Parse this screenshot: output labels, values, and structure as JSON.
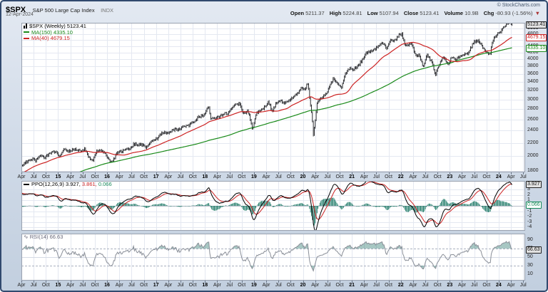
{
  "header": {
    "symbol": "$SPX",
    "name": "S&P 500 Large Cap Index",
    "exchange": "INDX",
    "date": "12-Apr-2024",
    "credit": "© StockCharts.com",
    "quote": {
      "open_label": "Open",
      "open": "5211.37",
      "high_label": "High",
      "high": "5224.81",
      "low_label": "Low",
      "low": "5107.94",
      "close_label": "Close",
      "close": "5123.41",
      "volume_label": "Volume",
      "volume": "10.9B",
      "chg_label": "Chg",
      "chg": "-80.93 (-1.56%)",
      "chg_dir": "▼"
    }
  },
  "legends": {
    "price_main": "$SPX (Weekly) 5123.41",
    "price_ma150": "MA(150) 4335.10",
    "price_ma40": "MA(40) 4679.15",
    "ppo_1": "PPO(12,26,9) 3.927,",
    "ppo_2": "3.861,",
    "ppo_3": "0.066",
    "rsi": "RSI(14) 66.63"
  },
  "colors": {
    "bars": "#15161a",
    "ma150": "#1a8a1a",
    "ma40": "#cc2222",
    "ppo_line": "#000000",
    "ppo_signal": "#cc2222",
    "ppo_hist": "#1f7a68",
    "rsi_line": "#8a8f98",
    "rsi_fill": "rgba(35,115,105,0.40)",
    "grid": "#e4e8f1",
    "panel_border": "#9aa2b0",
    "panel_bg": "#ffffff"
  },
  "axis": {
    "price_labels": [
      5000,
      4800,
      4600,
      4400,
      4200,
      4000,
      3800,
      3600,
      3400,
      3200,
      3000,
      2800,
      2600,
      2400,
      2200,
      2000,
      1800
    ],
    "price_boxes": [
      {
        "text": "5123.41",
        "value": 5123.41,
        "style": "last"
      },
      {
        "text": "4679.15",
        "value": 4679.15,
        "style": "ma40"
      },
      {
        "text": "4335.10",
        "value": 4335.1,
        "style": "ma150"
      }
    ],
    "ppo_labels": [
      3,
      2,
      1,
      0,
      -1,
      -2,
      -3,
      -4
    ],
    "ppo_boxes": [
      {
        "text": "3.927",
        "value": 3.927,
        "style": "last"
      },
      {
        "text": "0.066",
        "value": 0.066,
        "style": "hist"
      }
    ],
    "rsi_labels": [
      90,
      70,
      50,
      30,
      10
    ],
    "rsi_boxes": [
      {
        "text": "66.63",
        "value": 66.63,
        "style": "last"
      }
    ]
  },
  "x_ticks": [
    {
      "t": 2014.25,
      "l": "Apr"
    },
    {
      "t": 2014.5,
      "l": "Jul"
    },
    {
      "t": 2014.75,
      "l": "Oct"
    },
    {
      "t": 2015,
      "l": "15",
      "y": true
    },
    {
      "t": 2015.25,
      "l": "Apr"
    },
    {
      "t": 2015.5,
      "l": "Jul"
    },
    {
      "t": 2015.75,
      "l": "Oct"
    },
    {
      "t": 2016,
      "l": "16",
      "y": true
    },
    {
      "t": 2016.25,
      "l": "Apr"
    },
    {
      "t": 2016.5,
      "l": "Jul"
    },
    {
      "t": 2016.75,
      "l": "Oct"
    },
    {
      "t": 2017,
      "l": "17",
      "y": true
    },
    {
      "t": 2017.25,
      "l": "Apr"
    },
    {
      "t": 2017.5,
      "l": "Jul"
    },
    {
      "t": 2017.75,
      "l": "Oct"
    },
    {
      "t": 2018,
      "l": "18",
      "y": true
    },
    {
      "t": 2018.25,
      "l": "Apr"
    },
    {
      "t": 2018.5,
      "l": "Jul"
    },
    {
      "t": 2018.75,
      "l": "Oct"
    },
    {
      "t": 2019,
      "l": "19",
      "y": true
    },
    {
      "t": 2019.25,
      "l": "Apr"
    },
    {
      "t": 2019.5,
      "l": "Jul"
    },
    {
      "t": 2019.75,
      "l": "Oct"
    },
    {
      "t": 2020,
      "l": "20",
      "y": true
    },
    {
      "t": 2020.25,
      "l": "Apr"
    },
    {
      "t": 2020.5,
      "l": "Jul"
    },
    {
      "t": 2020.75,
      "l": "Oct"
    },
    {
      "t": 2021,
      "l": "21",
      "y": true
    },
    {
      "t": 2021.25,
      "l": "Apr"
    },
    {
      "t": 2021.5,
      "l": "Jul"
    },
    {
      "t": 2021.75,
      "l": "Oct"
    },
    {
      "t": 2022,
      "l": "22",
      "y": true
    },
    {
      "t": 2022.25,
      "l": "Apr"
    },
    {
      "t": 2022.5,
      "l": "Jul"
    },
    {
      "t": 2022.75,
      "l": "Oct"
    },
    {
      "t": 2023,
      "l": "23",
      "y": true
    },
    {
      "t": 2023.25,
      "l": "Apr"
    },
    {
      "t": 2023.5,
      "l": "Jul"
    },
    {
      "t": 2023.75,
      "l": "Oct"
    },
    {
      "t": 2024,
      "l": "24",
      "y": true
    },
    {
      "t": 2024.25,
      "l": "Apr"
    },
    {
      "t": 2024.5,
      "l": "Jul"
    }
  ],
  "chart_data": {
    "type": "ohlc",
    "title": "$SPX weekly with MA(150), MA(40), PPO(12,26,9), RSI(14)",
    "timeframe": "weekly",
    "x_domain": [
      2014.25,
      2024.54
    ],
    "price_panel": {
      "scale": "log",
      "range": [
        1780,
        5200
      ],
      "gridline_step": 200,
      "last_close": 5123.41,
      "overlays": [
        {
          "name": "MA(150)",
          "period": 150,
          "last": 4335.1
        },
        {
          "name": "MA(40)",
          "period": 40,
          "last": 4679.15
        }
      ],
      "close_anchors": [
        [
          2011.29,
          1364
        ],
        [
          2011.375,
          1345
        ],
        [
          2011.46,
          1321
        ],
        [
          2011.54,
          1292
        ],
        [
          2011.625,
          1219
        ],
        [
          2011.71,
          1131
        ],
        [
          2011.79,
          1253
        ],
        [
          2011.875,
          1247
        ],
        [
          2011.96,
          1258
        ],
        [
          2012.04,
          1312
        ],
        [
          2012.125,
          1366
        ],
        [
          2012.21,
          1408
        ],
        [
          2012.29,
          1398
        ],
        [
          2012.375,
          1310
        ],
        [
          2012.46,
          1362
        ],
        [
          2012.54,
          1379
        ],
        [
          2012.625,
          1407
        ],
        [
          2012.71,
          1441
        ],
        [
          2012.79,
          1412
        ],
        [
          2012.875,
          1416
        ],
        [
          2012.96,
          1426
        ],
        [
          2013.04,
          1498
        ],
        [
          2013.125,
          1515
        ],
        [
          2013.21,
          1569
        ],
        [
          2013.29,
          1598
        ],
        [
          2013.375,
          1631
        ],
        [
          2013.46,
          1606
        ],
        [
          2013.54,
          1686
        ],
        [
          2013.625,
          1633
        ],
        [
          2013.71,
          1682
        ],
        [
          2013.79,
          1757
        ],
        [
          2013.875,
          1806
        ],
        [
          2013.96,
          1848
        ],
        [
          2014.04,
          1783
        ],
        [
          2014.125,
          1859
        ],
        [
          2014.21,
          1872
        ],
        [
          2014.29,
          1884
        ],
        [
          2014.375,
          1924
        ],
        [
          2014.46,
          1960
        ],
        [
          2014.54,
          1931
        ],
        [
          2014.625,
          2003
        ],
        [
          2014.71,
          1972
        ],
        [
          2014.79,
          2018
        ],
        [
          2014.875,
          2068
        ],
        [
          2014.96,
          2059
        ],
        [
          2015.04,
          1995
        ],
        [
          2015.125,
          2105
        ],
        [
          2015.21,
          2068
        ],
        [
          2015.29,
          2086
        ],
        [
          2015.375,
          2107
        ],
        [
          2015.46,
          2063
        ],
        [
          2015.54,
          2104
        ],
        [
          2015.625,
          1972
        ],
        [
          2015.71,
          1920
        ],
        [
          2015.79,
          2079
        ],
        [
          2015.875,
          2080
        ],
        [
          2015.96,
          2044
        ],
        [
          2016.04,
          1940
        ],
        [
          2016.125,
          1932
        ],
        [
          2016.21,
          2060
        ],
        [
          2016.29,
          2065
        ],
        [
          2016.375,
          2097
        ],
        [
          2016.46,
          2099
        ],
        [
          2016.54,
          2174
        ],
        [
          2016.625,
          2171
        ],
        [
          2016.71,
          2168
        ],
        [
          2016.79,
          2126
        ],
        [
          2016.875,
          2199
        ],
        [
          2016.96,
          2239
        ],
        [
          2017.04,
          2279
        ],
        [
          2017.125,
          2364
        ],
        [
          2017.21,
          2363
        ],
        [
          2017.29,
          2384
        ],
        [
          2017.375,
          2412
        ],
        [
          2017.46,
          2423
        ],
        [
          2017.54,
          2470
        ],
        [
          2017.625,
          2472
        ],
        [
          2017.71,
          2519
        ],
        [
          2017.79,
          2575
        ],
        [
          2017.875,
          2648
        ],
        [
          2017.96,
          2674
        ],
        [
          2018.02,
          2750
        ],
        [
          2018.07,
          2873
        ],
        [
          2018.11,
          2620
        ],
        [
          2018.21,
          2641
        ],
        [
          2018.29,
          2648
        ],
        [
          2018.375,
          2705
        ],
        [
          2018.46,
          2718
        ],
        [
          2018.54,
          2816
        ],
        [
          2018.625,
          2902
        ],
        [
          2018.71,
          2914
        ],
        [
          2018.79,
          2712
        ],
        [
          2018.875,
          2760
        ],
        [
          2018.93,
          2600
        ],
        [
          2018.97,
          2417
        ],
        [
          2019.04,
          2704
        ],
        [
          2019.125,
          2784
        ],
        [
          2019.21,
          2834
        ],
        [
          2019.29,
          2946
        ],
        [
          2019.375,
          2752
        ],
        [
          2019.46,
          2942
        ],
        [
          2019.54,
          2980
        ],
        [
          2019.625,
          2926
        ],
        [
          2019.71,
          2977
        ],
        [
          2019.79,
          3038
        ],
        [
          2019.875,
          3141
        ],
        [
          2019.96,
          3231
        ],
        [
          2020.04,
          3226
        ],
        [
          2020.1,
          3380
        ],
        [
          2020.145,
          2954
        ],
        [
          2020.18,
          2711
        ],
        [
          2020.215,
          2305
        ],
        [
          2020.25,
          2585
        ],
        [
          2020.29,
          2912
        ],
        [
          2020.375,
          3044
        ],
        [
          2020.46,
          3100
        ],
        [
          2020.54,
          3271
        ],
        [
          2020.625,
          3500
        ],
        [
          2020.71,
          3363
        ],
        [
          2020.79,
          3270
        ],
        [
          2020.875,
          3622
        ],
        [
          2020.96,
          3756
        ],
        [
          2021.04,
          3714
        ],
        [
          2021.125,
          3811
        ],
        [
          2021.21,
          3973
        ],
        [
          2021.29,
          4181
        ],
        [
          2021.375,
          4204
        ],
        [
          2021.46,
          4298
        ],
        [
          2021.54,
          4395
        ],
        [
          2021.625,
          4523
        ],
        [
          2021.71,
          4308
        ],
        [
          2021.79,
          4605
        ],
        [
          2021.875,
          4567
        ],
        [
          2021.96,
          4766
        ],
        [
          2022.02,
          4796
        ],
        [
          2022.07,
          4516
        ],
        [
          2022.125,
          4374
        ],
        [
          2022.21,
          4530
        ],
        [
          2022.29,
          4132
        ],
        [
          2022.375,
          4132
        ],
        [
          2022.46,
          3785
        ],
        [
          2022.54,
          4130
        ],
        [
          2022.625,
          3955
        ],
        [
          2022.71,
          3586
        ],
        [
          2022.79,
          3872
        ],
        [
          2022.875,
          4080
        ],
        [
          2022.96,
          3840
        ],
        [
          2023.04,
          4077
        ],
        [
          2023.125,
          3970
        ],
        [
          2023.21,
          4109
        ],
        [
          2023.29,
          4169
        ],
        [
          2023.375,
          4180
        ],
        [
          2023.46,
          4450
        ],
        [
          2023.54,
          4589
        ],
        [
          2023.625,
          4508
        ],
        [
          2023.71,
          4288
        ],
        [
          2023.82,
          4117
        ],
        [
          2023.875,
          4568
        ],
        [
          2023.96,
          4770
        ],
        [
          2024.04,
          4846
        ],
        [
          2024.125,
          5096
        ],
        [
          2024.21,
          5254
        ],
        [
          2024.28,
          5123.41
        ]
      ]
    },
    "ppo_panel": {
      "params": [
        12,
        26,
        9
      ],
      "range": [
        4.6,
        -4.6
      ],
      "last": 3.927,
      "signal_last": 3.861,
      "hist_last": 0.066
    },
    "rsi_panel": {
      "period": 14,
      "range": [
        105,
        -5
      ],
      "last": 66.63,
      "overbought": 70,
      "oversold": 30,
      "midline": 50
    }
  }
}
